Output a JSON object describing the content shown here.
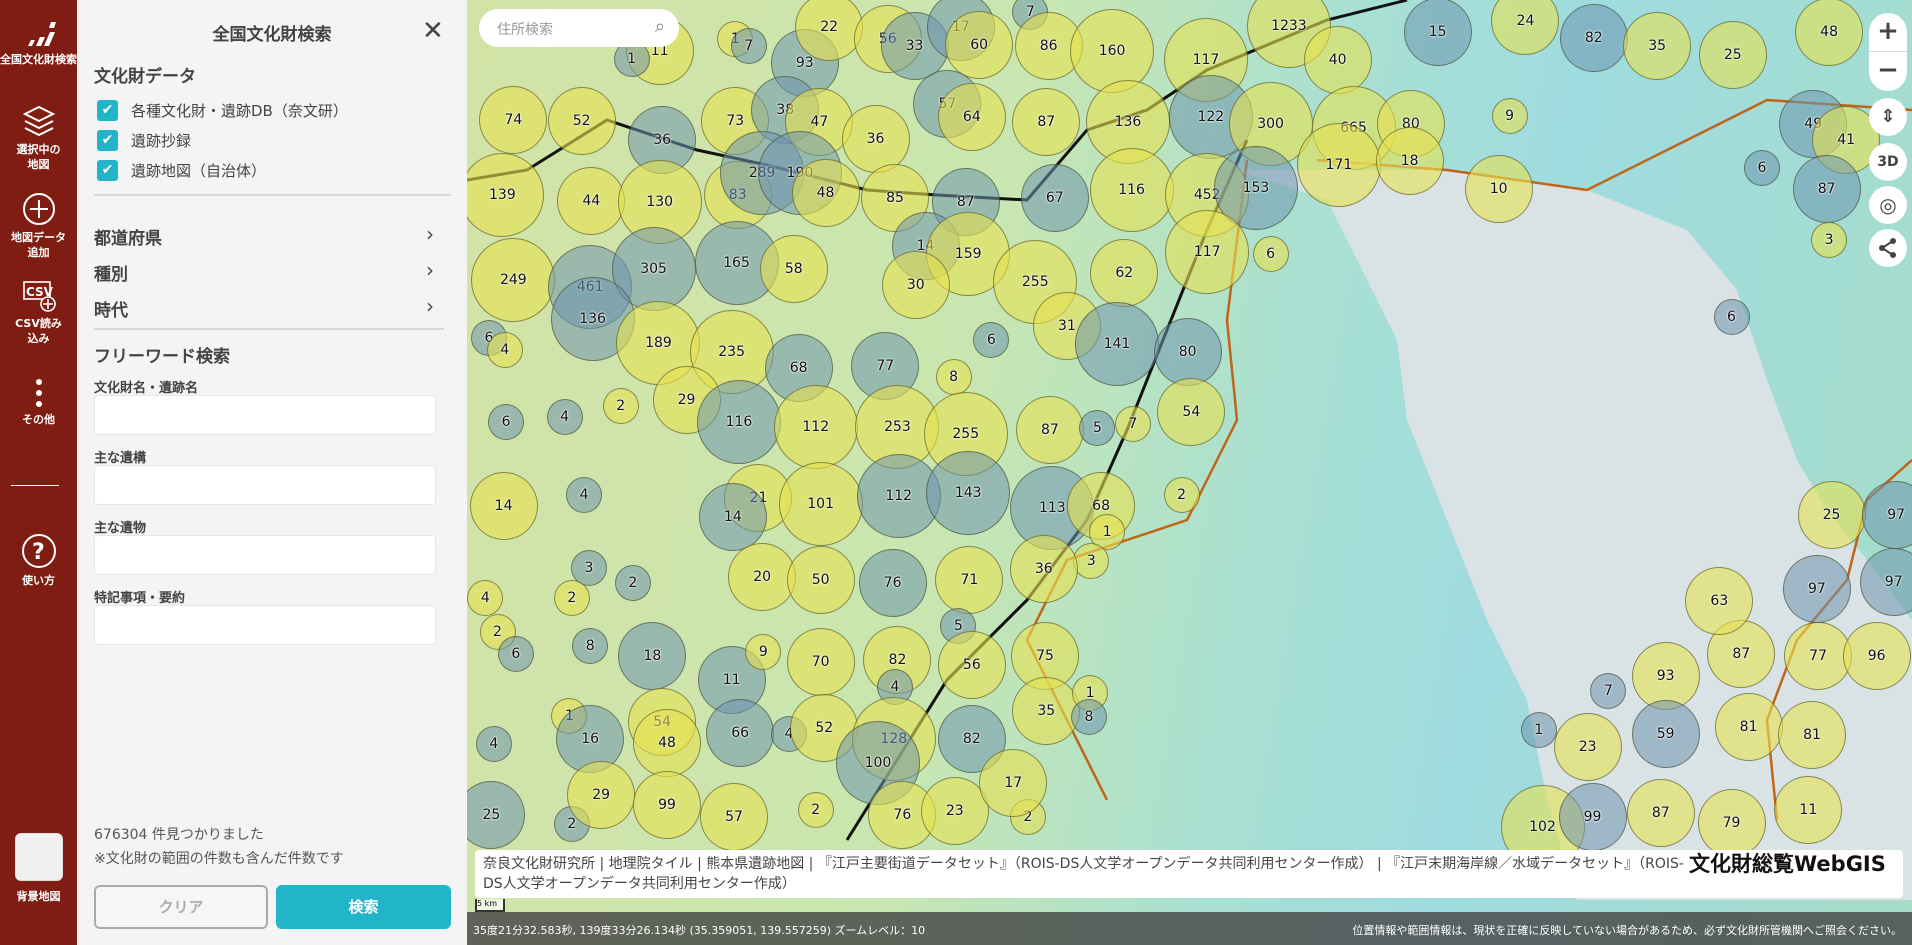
{
  "rail": {
    "items": [
      {
        "icon": "logo-icon",
        "label": "全国文化財検索"
      },
      {
        "icon": "layers-icon",
        "label": "選択中の地図"
      },
      {
        "icon": "plus-circle-icon",
        "label": "地図データ追加"
      },
      {
        "icon": "csv-add-icon",
        "label": "CSV読み込み"
      },
      {
        "icon": "more-icon",
        "label": "その他"
      },
      {
        "icon": "help-icon",
        "label": "使い方"
      },
      {
        "icon": "basemap-thumbnail",
        "label": "背景地図"
      }
    ]
  },
  "panel": {
    "title": "全国文化財検索",
    "data_heading": "文化財データ",
    "checkboxes": [
      {
        "label": "各種文化財・遺跡DB（奈文研）",
        "checked": true
      },
      {
        "label": "遺跡抄録",
        "checked": true
      },
      {
        "label": "遺跡地図（自治体）",
        "checked": true
      }
    ],
    "filters": [
      "都道府県",
      "種別",
      "時代"
    ],
    "freeword_heading": "フリーワード検索",
    "fields": [
      {
        "label": "文化財名・遺跡名",
        "value": ""
      },
      {
        "label": "主な遺構",
        "value": ""
      },
      {
        "label": "主な遺物",
        "value": ""
      },
      {
        "label": "特記事項・要約",
        "value": ""
      }
    ],
    "result_count": "676304 件見つかりました",
    "result_note": "※文化財の範囲の件数も含んだ件数です",
    "clear_label": "クリア",
    "search_label": "検索",
    "accent": "#22b4c9"
  },
  "map": {
    "search_placeholder": "住所検索",
    "controls": {
      "zoom_in": "+",
      "zoom_out": "−",
      "compass": "⇕",
      "three_d": "3D",
      "locate": "◎",
      "share": "share"
    },
    "clusters": [
      11,
      1,
      1,
      7,
      93,
      22,
      56,
      33,
      17,
      60,
      7,
      86,
      160,
      117,
      1233,
      40,
      15,
      24,
      82,
      35,
      25,
      48,
      74,
      52,
      36,
      73,
      38,
      47,
      36,
      57,
      64,
      87,
      136,
      122,
      300,
      665,
      80,
      9,
      49,
      41,
      6,
      87,
      139,
      44,
      130,
      83,
      289,
      190,
      48,
      85,
      87,
      67,
      116,
      452,
      153,
      171,
      18,
      10,
      3,
      249,
      461,
      305,
      165,
      58,
      14,
      159,
      30,
      255,
      62,
      117,
      6,
      136,
      6,
      189,
      235,
      68,
      77,
      8,
      6,
      31,
      141,
      80,
      4,
      2,
      29,
      116,
      112,
      253,
      255,
      87,
      5,
      7,
      54,
      6,
      4,
      14,
      4,
      21,
      14,
      101,
      112,
      143,
      113,
      68,
      2,
      1,
      3,
      3,
      2,
      2,
      4,
      20,
      50,
      76,
      71,
      36,
      5,
      25,
      97,
      2,
      6,
      8,
      18,
      11,
      9,
      70,
      82,
      56,
      4,
      75,
      87,
      77,
      96,
      97,
      63,
      97,
      1,
      16,
      4,
      54,
      48,
      66,
      4,
      52,
      128,
      82,
      35,
      1,
      8,
      1,
      23,
      7,
      93,
      59,
      81,
      81,
      6,
      25,
      2,
      29,
      99,
      57,
      2,
      100,
      76,
      23,
      2,
      17,
      102,
      99,
      87,
      79,
      11
    ],
    "attribution": "奈良文化財研究所 | 地理院タイル | 熊本県遺跡地図 | 『江戸主要街道データセット』（ROIS-DS人文学オープンデータ共同利用センター作成） | 『江戸末期海岸線／水域データセット』（ROIS-DS人文学オープンデータ共同利用センター作成）",
    "brand": "文化財総覧WebGIS",
    "scale": "5 km",
    "coords": "35度21分32.583秒, 139度33分26.134秒 (35.359051, 139.557259) ズームレベル：10",
    "disclaimer": "位置情報や範囲情報は、現状を正確に反映していない場合があるため、必ず文化財所管機関へご照会ください。"
  }
}
